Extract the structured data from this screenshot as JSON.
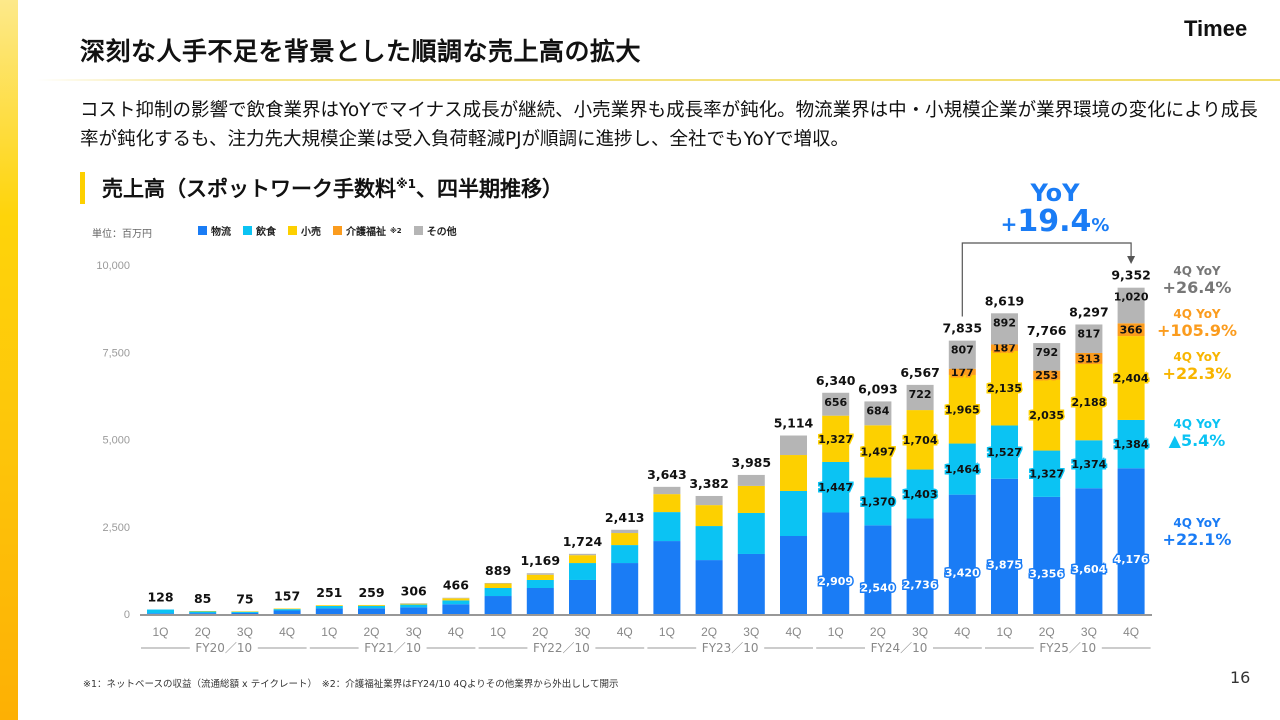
{
  "page": {
    "title": "深刻な人手不足を背景とした順調な売上高の拡大",
    "logo": "Timee",
    "lead": "コスト抑制の影響で飲食業界はYoYでマイナス成長が継続、小売業界も成長率が鈍化。物流業界は中・小規模企業が業界環境の変化により成長率が鈍化するも、注力先大規模企業は受入負荷軽減PJが順調に進捗し、全社でもYoYで増収。",
    "section_title": "売上高（スポットワーク手数料",
    "section_title_sup": "※1",
    "section_title_tail": "、四半期推移）",
    "unit": "単位：百万円",
    "footnote": "※1：ネットベースの収益（流通総額 x テイクレート）　※2：介護福祉業界はFY24/10 4Qよりその他業界から外出しして開示",
    "page_number": "16"
  },
  "legend": [
    {
      "name": "物流",
      "sup": "",
      "color": "#1a7cf5"
    },
    {
      "name": "飲食",
      "sup": "",
      "color": "#0bc3f3"
    },
    {
      "name": "小売",
      "sup": "",
      "color": "#fdd000"
    },
    {
      "name": "介護福祉",
      "sup": "※2",
      "color": "#fb9c1e"
    },
    {
      "name": "その他",
      "sup": "",
      "color": "#b5b5b5"
    }
  ],
  "yoy_total": {
    "label": "YoY",
    "sign": "+",
    "value": "19.4",
    "unit": "%",
    "color": "#1a7cf5"
  },
  "side_yoy": [
    {
      "key": "4Q YoY",
      "value": "+26.4%",
      "color": "#777777",
      "segment": "その他"
    },
    {
      "key": "4Q YoY",
      "value": "+105.9%",
      "color": "#fb9c1e",
      "segment": "介護福祉"
    },
    {
      "key": "4Q YoY",
      "value": "+22.3%",
      "color": "#f8b500",
      "segment": "小売"
    },
    {
      "key": "4Q YoY",
      "value": "▲5.4%",
      "color": "#0bc3f3",
      "segment": "飲食"
    },
    {
      "key": "4Q YoY",
      "value": "+22.1%",
      "color": "#1a7cf5",
      "segment": "物流"
    }
  ],
  "chart_data": {
    "type": "bar",
    "stacked": true,
    "title": "売上高（スポットワーク手数料※1、四半期推移）",
    "xlabel": "",
    "ylabel": "単位：百万円",
    "ylim": [
      0,
      10000
    ],
    "yticks": [
      0,
      2500,
      5000,
      7500,
      10000
    ],
    "ytick_labels": [
      "0",
      "2,500",
      "5,000",
      "7,500",
      "10,000"
    ],
    "grid": false,
    "legend_position": "top-left",
    "categories": [
      "1Q",
      "2Q",
      "3Q",
      "4Q",
      "1Q",
      "2Q",
      "3Q",
      "4Q",
      "1Q",
      "2Q",
      "3Q",
      "4Q",
      "1Q",
      "2Q",
      "3Q",
      "4Q",
      "1Q",
      "2Q",
      "3Q",
      "4Q",
      "1Q",
      "2Q",
      "3Q",
      "4Q"
    ],
    "fiscal_years": [
      {
        "label": "FY20／10",
        "start": 0,
        "end": 3
      },
      {
        "label": "FY21／10",
        "start": 4,
        "end": 7
      },
      {
        "label": "FY22／10",
        "start": 8,
        "end": 11
      },
      {
        "label": "FY23／10",
        "start": 12,
        "end": 15
      },
      {
        "label": "FY24／10",
        "start": 16,
        "end": 19
      },
      {
        "label": "FY25／10",
        "start": 20,
        "end": 23
      }
    ],
    "totals": [
      128,
      85,
      75,
      157,
      251,
      259,
      306,
      466,
      889,
      1169,
      1724,
      2413,
      3643,
      3382,
      3985,
      5114,
      6340,
      6093,
      6567,
      7835,
      8619,
      7766,
      8297,
      9352
    ],
    "total_labels": [
      "128",
      "85",
      "75",
      "157",
      "251",
      "259",
      "306",
      "466",
      "889",
      "1,169",
      "1,724",
      "2,413",
      "3,643",
      "3,382",
      "3,985",
      "5,114",
      "6,340",
      "6,093",
      "6,567",
      "7,835",
      "8,619",
      "7,766",
      "8,297",
      "9,352"
    ],
    "series": [
      {
        "name": "物流",
        "color": "#1a7cf5",
        "labeled": true,
        "values": [
          20,
          25,
          30,
          100,
          160,
          165,
          190,
          280,
          515,
          745,
          975,
          1460,
          2090,
          1545,
          1720,
          2235,
          2909,
          2540,
          2736,
          3420,
          3875,
          3356,
          3604,
          4176
        ]
      },
      {
        "name": "飲食",
        "color": "#0bc3f3",
        "labeled": true,
        "values": [
          108,
          50,
          40,
          40,
          70,
          70,
          80,
          110,
          230,
          230,
          485,
          515,
          830,
          975,
          1175,
          1290,
          1447,
          1370,
          1403,
          1464,
          1527,
          1327,
          1374,
          1384
        ]
      },
      {
        "name": "小売",
        "color": "#fdd000",
        "labeled": true,
        "values": [
          0,
          10,
          5,
          17,
          21,
          24,
          30,
          60,
          130,
          150,
          225,
          345,
          515,
          600,
          775,
          1030,
          1327,
          1497,
          1704,
          1965,
          2135,
          2035,
          2188,
          2404
        ]
      },
      {
        "name": "介護福祉",
        "color": "#fb9c1e",
        "labeled": true,
        "values": [
          0,
          0,
          0,
          0,
          0,
          0,
          0,
          0,
          0,
          0,
          0,
          0,
          0,
          0,
          0,
          0,
          0,
          0,
          0,
          177,
          187,
          253,
          313,
          366
        ]
      },
      {
        "name": "その他",
        "color": "#b5b5b5",
        "labeled": true,
        "values": [
          0,
          0,
          0,
          0,
          0,
          0,
          6,
          16,
          14,
          44,
          39,
          93,
          208,
          262,
          315,
          559,
          656,
          684,
          722,
          807,
          892,
          792,
          817,
          1020
        ]
      }
    ],
    "labeled_from_index": 16,
    "annotation": {
      "from_index": 19,
      "to_index": 23,
      "text": "YoY +19.4%"
    }
  }
}
